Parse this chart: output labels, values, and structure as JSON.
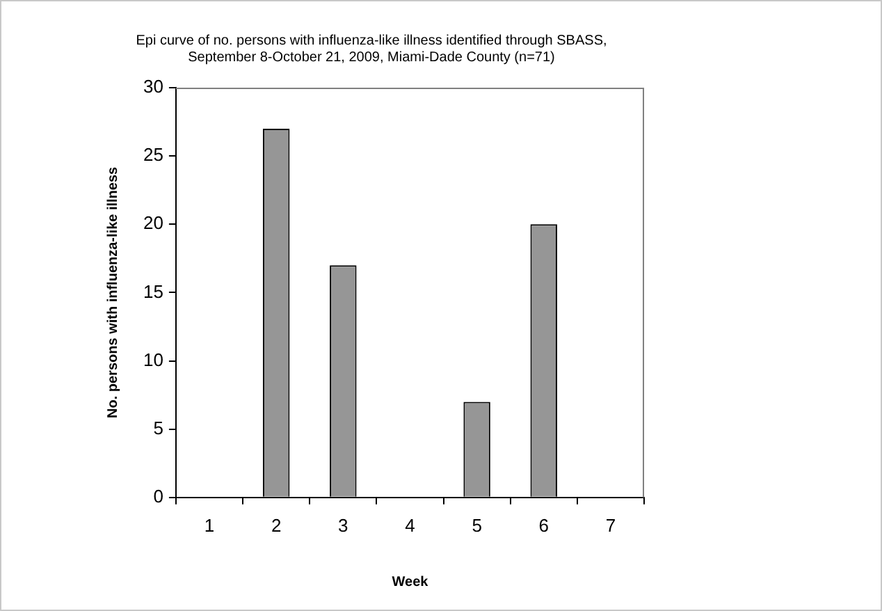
{
  "chart_data": {
    "type": "bar",
    "title": [
      "Epi curve of no. persons with influenza-like illness identified through SBASS,",
      "September 8-October 21, 2009, Miami-Dade County (n=71)"
    ],
    "xlabel": "Week",
    "ylabel": "No. persons with influenza-like illness",
    "categories": [
      "1",
      "2",
      "3",
      "4",
      "5",
      "6",
      "7"
    ],
    "values": [
      0,
      27,
      17,
      0,
      7,
      20,
      0
    ],
    "color": "#969696",
    "ylim": [
      0,
      30
    ],
    "yticks": [
      0,
      5,
      10,
      15,
      20,
      25,
      30
    ],
    "grid": false,
    "legend": false
  }
}
